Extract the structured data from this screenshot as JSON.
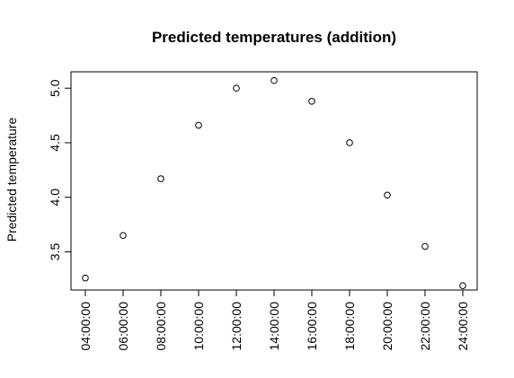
{
  "chart_data": {
    "type": "scatter",
    "title": "Predicted temperatures (addition)",
    "xlabel": "",
    "ylabel": "Predicted temperature",
    "categories": [
      "04:00:00",
      "06:00:00",
      "08:00:00",
      "10:00:00",
      "12:00:00",
      "14:00:00",
      "16:00:00",
      "18:00:00",
      "20:00:00",
      "22:00:00",
      "24:00:00"
    ],
    "values": [
      3.26,
      3.65,
      4.17,
      4.66,
      5.0,
      5.07,
      4.88,
      4.5,
      4.02,
      3.55,
      3.19
    ],
    "ylim": [
      3.15,
      5.15
    ],
    "yticks": [
      3.5,
      4.0,
      4.5,
      5.0
    ],
    "ytick_labels": [
      "3.5",
      "4.0",
      "4.5",
      "5.0"
    ],
    "grid": false,
    "legend": "none"
  }
}
